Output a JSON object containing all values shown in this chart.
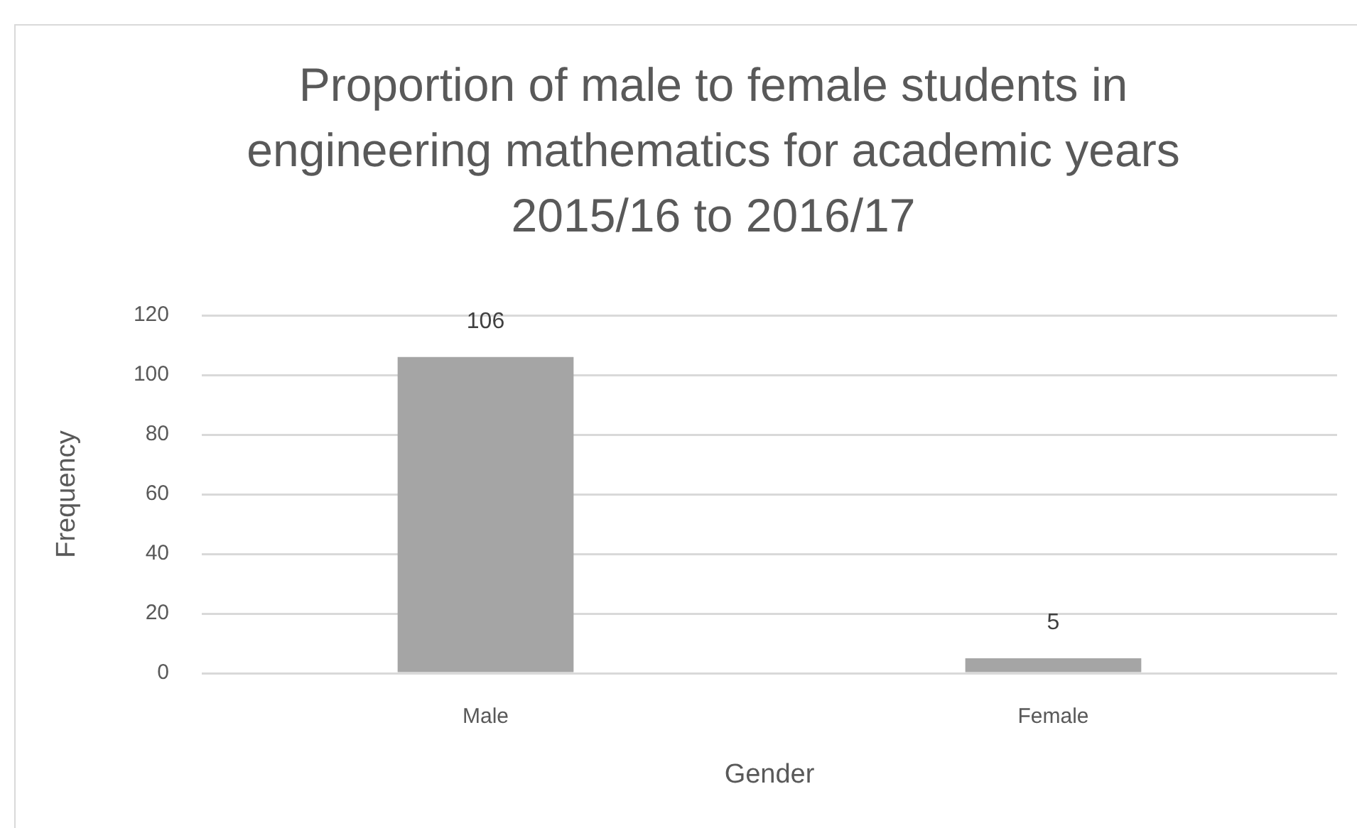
{
  "chart_data": {
    "type": "bar",
    "title": "Proportion of male to female students in engineering mathematics for academic years 2015/16 to 2016/17",
    "xlabel": "Gender",
    "ylabel": "Frequency",
    "categories": [
      "Male",
      "Female"
    ],
    "values": [
      106,
      5
    ],
    "color": "#a5a5a5",
    "ylim": [
      0,
      120
    ],
    "yticks": [
      0,
      20,
      40,
      60,
      80,
      100,
      120
    ],
    "grid": "y",
    "data_labels": true
  }
}
